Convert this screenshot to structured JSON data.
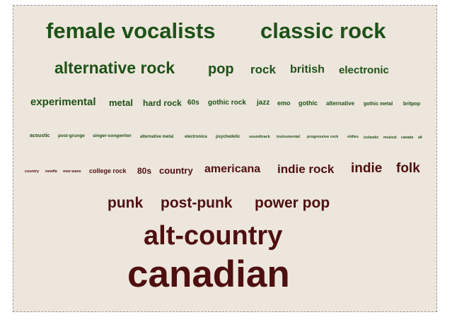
{
  "colors": {
    "green": "#1e5218",
    "maroon": "#4e0f10",
    "background": "#ede6dc"
  },
  "tags": [
    {
      "text": "female vocalists",
      "color": "green"
    },
    {
      "text": "classic rock",
      "color": "green"
    },
    {
      "text": "alternative rock",
      "color": "green"
    },
    {
      "text": "pop",
      "color": "green"
    },
    {
      "text": "rock",
      "color": "green"
    },
    {
      "text": "british",
      "color": "green"
    },
    {
      "text": "electronic",
      "color": "green"
    },
    {
      "text": "experimental",
      "color": "green"
    },
    {
      "text": "metal",
      "color": "green"
    },
    {
      "text": "hard rock",
      "color": "green"
    },
    {
      "text": "60s",
      "color": "green"
    },
    {
      "text": "gothic rock",
      "color": "green"
    },
    {
      "text": "jazz",
      "color": "green"
    },
    {
      "text": "emo",
      "color": "green"
    },
    {
      "text": "gothic",
      "color": "green"
    },
    {
      "text": "alternative",
      "color": "green"
    },
    {
      "text": "gothic metal",
      "color": "green"
    },
    {
      "text": "britpop",
      "color": "green"
    },
    {
      "text": "acoustic",
      "color": "green"
    },
    {
      "text": "post-grunge",
      "color": "green"
    },
    {
      "text": "singer-songwriter",
      "color": "green"
    },
    {
      "text": "alternative metal",
      "color": "green"
    },
    {
      "text": "electronica",
      "color": "green"
    },
    {
      "text": "psychedelic",
      "color": "green"
    },
    {
      "text": "soundtrack",
      "color": "green"
    },
    {
      "text": "instrumental",
      "color": "green"
    },
    {
      "text": "progressive rock",
      "color": "green"
    },
    {
      "text": "oldies",
      "color": "green"
    },
    {
      "text": "icelandic",
      "color": "green"
    },
    {
      "text": "musical",
      "color": "green"
    },
    {
      "text": "canada",
      "color": "green"
    },
    {
      "text": "alt",
      "color": "green"
    },
    {
      "text": "country",
      "color": "maroon"
    },
    {
      "text": "newfie",
      "color": "maroon"
    },
    {
      "text": "new wave",
      "color": "maroon"
    },
    {
      "text": "college rock",
      "color": "maroon"
    },
    {
      "text": "80s",
      "color": "maroon"
    },
    {
      "text": "country",
      "color": "maroon"
    },
    {
      "text": "americana",
      "color": "maroon"
    },
    {
      "text": "indie rock",
      "color": "maroon"
    },
    {
      "text": "indie",
      "color": "maroon"
    },
    {
      "text": "folk",
      "color": "maroon"
    },
    {
      "text": "punk",
      "color": "maroon"
    },
    {
      "text": "post-punk",
      "color": "maroon"
    },
    {
      "text": "power pop",
      "color": "maroon"
    },
    {
      "text": "alt-country",
      "color": "maroon"
    },
    {
      "text": "canadian",
      "color": "maroon"
    }
  ]
}
